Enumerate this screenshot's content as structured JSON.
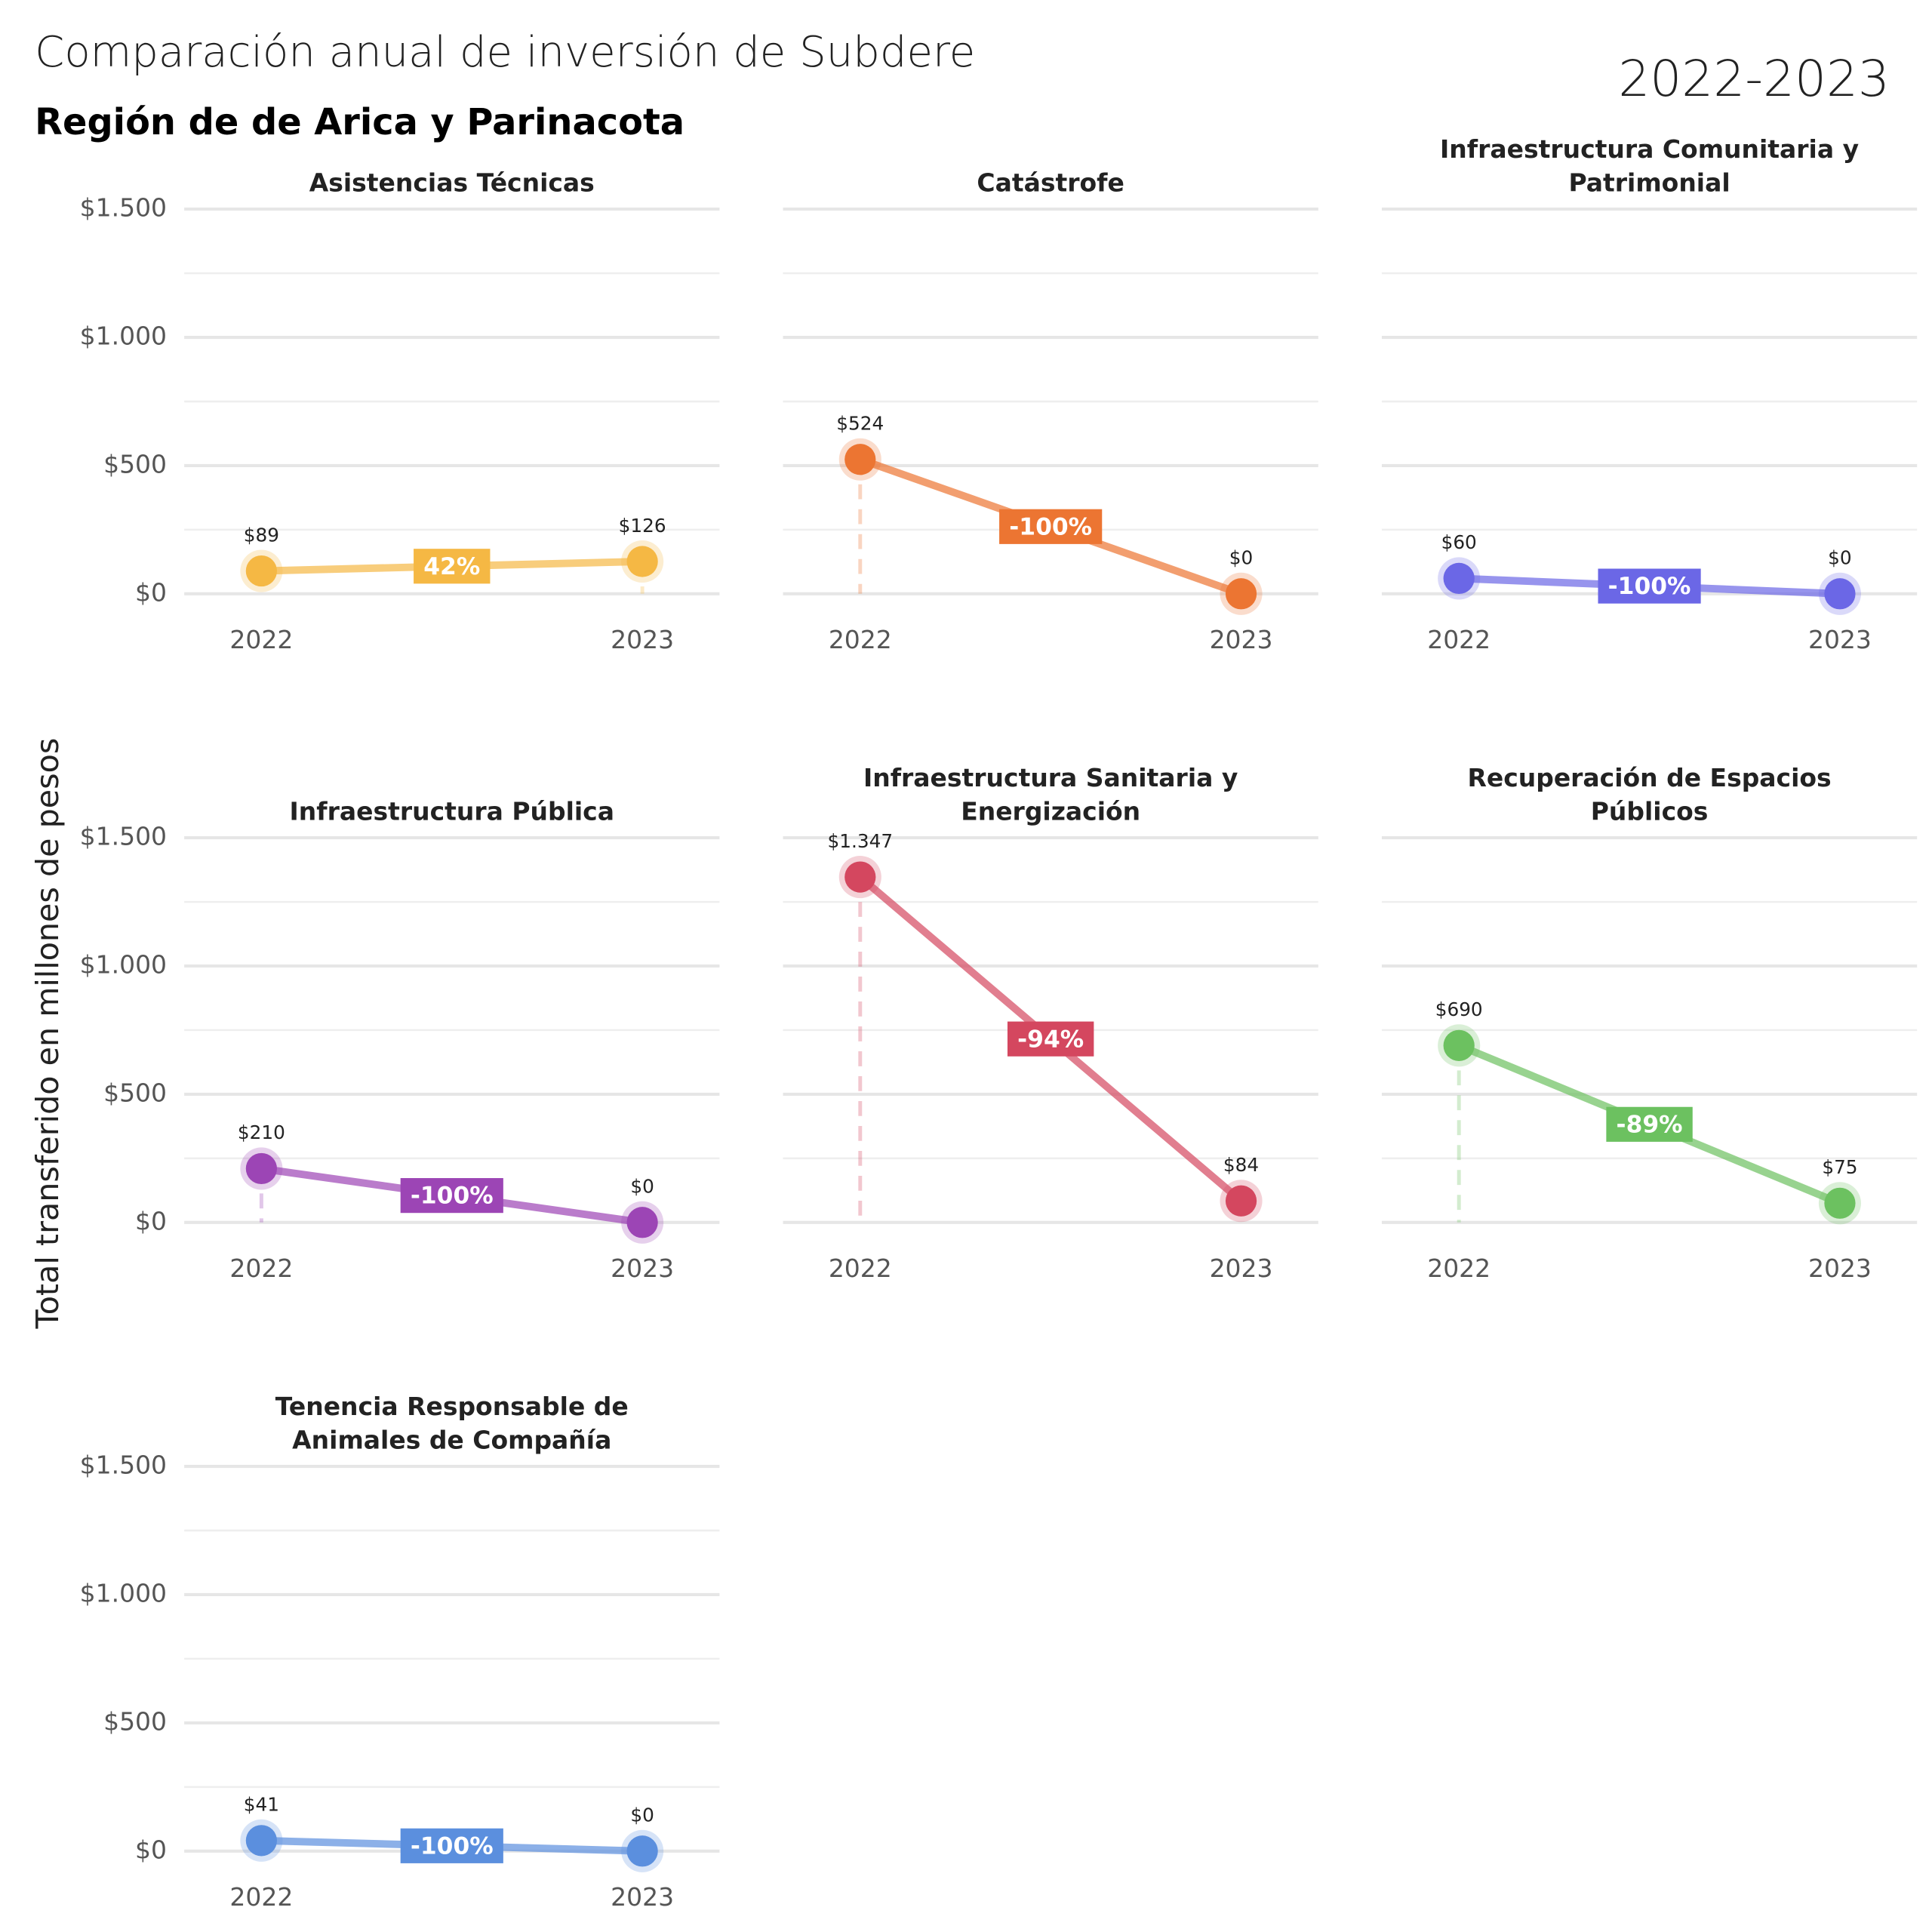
{
  "header": {
    "title": "Comparación anual de inversión de Subdere",
    "subtitle": "Región de de Arica y Parinacota",
    "period": "2022-2023",
    "ylabel": "Total transferido en millones de pesos"
  },
  "chart_data": [
    {
      "type": "line",
      "title": [
        "Asistencias Técnicas"
      ],
      "categories": [
        "2022",
        "2023"
      ],
      "values": [
        89,
        126
      ],
      "value_labels": [
        "$89",
        "$126"
      ],
      "annotation": "42%",
      "color": "#f5b844",
      "ylim": [
        0,
        1500
      ],
      "yticks": [
        {
          "value": 0,
          "label": "$0"
        },
        {
          "value": 500,
          "label": "$500"
        },
        {
          "value": 1000,
          "label": "$1.000"
        },
        {
          "value": 1500,
          "label": "$1.500"
        }
      ],
      "minor_yticks": [
        250,
        750,
        1250
      ],
      "grid": true
    },
    {
      "type": "line",
      "title": [
        "Catástrofe"
      ],
      "categories": [
        "2022",
        "2023"
      ],
      "values": [
        524,
        0
      ],
      "value_labels": [
        "$524",
        "$0"
      ],
      "annotation": "-100%",
      "color": "#ec7532",
      "ylim": [
        0,
        1500
      ],
      "yticks": [
        {
          "value": 0,
          "label": "$0"
        },
        {
          "value": 500,
          "label": "$500"
        },
        {
          "value": 1000,
          "label": "$1.000"
        },
        {
          "value": 1500,
          "label": "$1.500"
        }
      ],
      "minor_yticks": [
        250,
        750,
        1250
      ],
      "grid": true
    },
    {
      "type": "line",
      "title": [
        "Infraestructura Comunitaria y",
        "Patrimonial"
      ],
      "categories": [
        "2022",
        "2023"
      ],
      "values": [
        60,
        0
      ],
      "value_labels": [
        "$60",
        "$0"
      ],
      "annotation": "-100%",
      "color": "#6b67e6",
      "ylim": [
        0,
        1500
      ],
      "yticks": [
        {
          "value": 0,
          "label": "$0"
        },
        {
          "value": 500,
          "label": "$500"
        },
        {
          "value": 1000,
          "label": "$1.000"
        },
        {
          "value": 1500,
          "label": "$1.500"
        }
      ],
      "minor_yticks": [
        250,
        750,
        1250
      ],
      "grid": true
    },
    {
      "type": "line",
      "title": [
        "Infraestructura Pública"
      ],
      "categories": [
        "2022",
        "2023"
      ],
      "values": [
        210,
        0
      ],
      "value_labels": [
        "$210",
        "$0"
      ],
      "annotation": "-100%",
      "color": "#9c45b5",
      "ylim": [
        0,
        1500
      ],
      "yticks": [
        {
          "value": 0,
          "label": "$0"
        },
        {
          "value": 500,
          "label": "$500"
        },
        {
          "value": 1000,
          "label": "$1.000"
        },
        {
          "value": 1500,
          "label": "$1.500"
        }
      ],
      "minor_yticks": [
        250,
        750,
        1250
      ],
      "grid": true
    },
    {
      "type": "line",
      "title": [
        "Infraestructura Sanitaria y",
        "Energización"
      ],
      "categories": [
        "2022",
        "2023"
      ],
      "values": [
        1347,
        84
      ],
      "value_labels": [
        "$1.347",
        "$84"
      ],
      "annotation": "-94%",
      "color": "#d4475f",
      "ylim": [
        0,
        1500
      ],
      "yticks": [
        {
          "value": 0,
          "label": "$0"
        },
        {
          "value": 500,
          "label": "$500"
        },
        {
          "value": 1000,
          "label": "$1.000"
        },
        {
          "value": 1500,
          "label": "$1.500"
        }
      ],
      "minor_yticks": [
        250,
        750,
        1250
      ],
      "grid": true
    },
    {
      "type": "line",
      "title": [
        "Recuperación de Espacios",
        "Públicos"
      ],
      "categories": [
        "2022",
        "2023"
      ],
      "values": [
        690,
        75
      ],
      "value_labels": [
        "$690",
        "$75"
      ],
      "annotation": "-89%",
      "color": "#6cc160",
      "ylim": [
        0,
        1500
      ],
      "yticks": [
        {
          "value": 0,
          "label": "$0"
        },
        {
          "value": 500,
          "label": "$500"
        },
        {
          "value": 1000,
          "label": "$1.000"
        },
        {
          "value": 1500,
          "label": "$1.500"
        }
      ],
      "minor_yticks": [
        250,
        750,
        1250
      ],
      "grid": true
    },
    {
      "type": "line",
      "title": [
        "Tenencia Responsable de",
        "Animales de Compañía"
      ],
      "categories": [
        "2022",
        "2023"
      ],
      "values": [
        41,
        0
      ],
      "value_labels": [
        "$41",
        "$0"
      ],
      "annotation": "-100%",
      "color": "#5b8fde",
      "ylim": [
        0,
        1500
      ],
      "yticks": [
        {
          "value": 0,
          "label": "$0"
        },
        {
          "value": 500,
          "label": "$500"
        },
        {
          "value": 1000,
          "label": "$1.000"
        },
        {
          "value": 1500,
          "label": "$1.500"
        }
      ],
      "minor_yticks": [
        250,
        750,
        1250
      ],
      "grid": true
    }
  ]
}
